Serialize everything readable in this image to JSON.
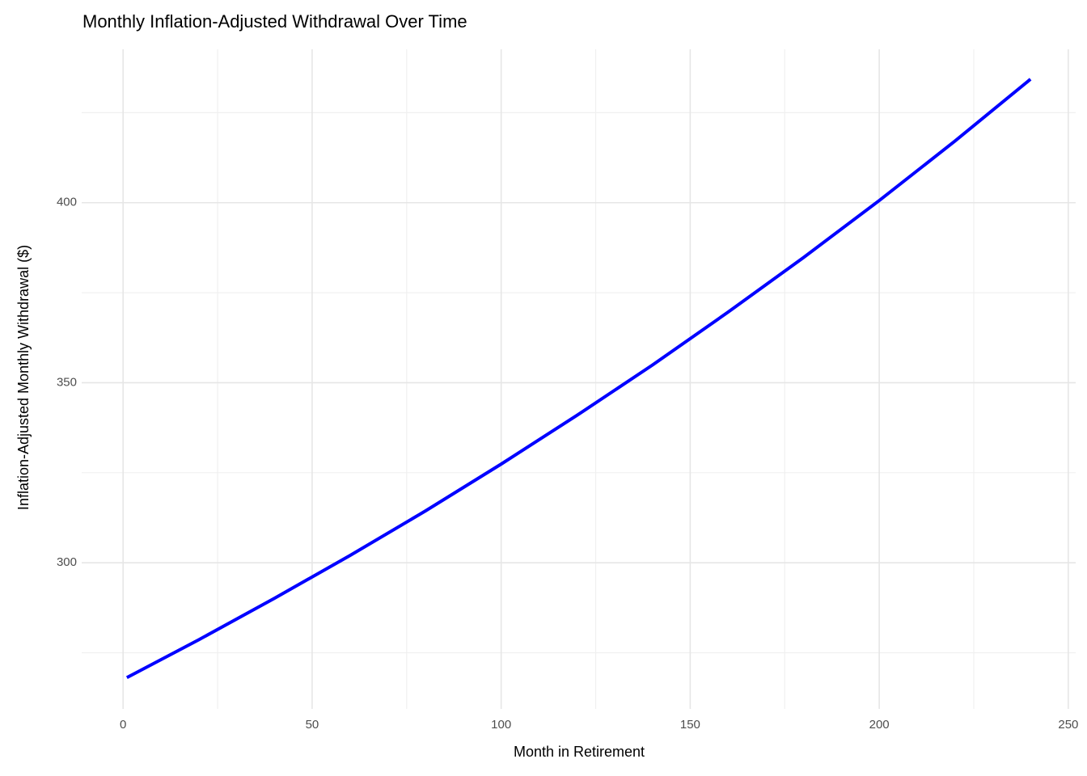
{
  "chart_data": {
    "type": "line",
    "title": "Monthly Inflation-Adjusted Withdrawal Over Time",
    "x_label": "Month in Retirement",
    "y_label": "Inflation-Adjusted Monthly Withdrawal ($)",
    "x": [
      1,
      20,
      40,
      60,
      80,
      100,
      120,
      140,
      160,
      180,
      200,
      220,
      240
    ],
    "series": [
      {
        "name": "Withdrawal",
        "color": "#0000ff",
        "values": [
          268.1,
          278.6,
          290.1,
          302.0,
          314.4,
          327.4,
          340.9,
          354.9,
          369.6,
          384.8,
          400.6,
          417.1,
          434.3
        ]
      }
    ],
    "xlim": [
      -10.95,
      251.95
    ],
    "xticks": [
      0,
      50,
      100,
      150,
      200,
      250
    ],
    "ylim": [
      259.4,
      442.6
    ],
    "yticks": [
      300,
      350,
      400
    ],
    "grid": true,
    "legend": false
  }
}
